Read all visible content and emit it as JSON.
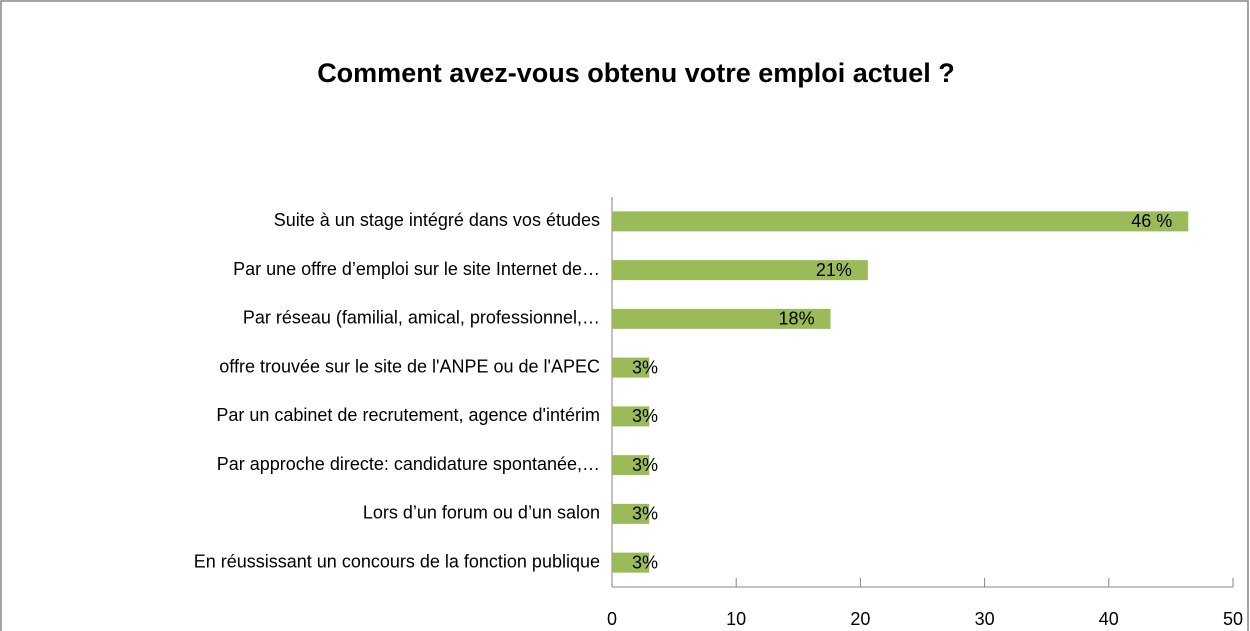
{
  "chart_data": {
    "type": "hbar",
    "title": "Comment avez-vous obtenu votre emploi actuel ?",
    "categories": [
      "Suite à un stage intégré dans vos études",
      "Par une offre d’emploi sur le site Internet de…",
      "Par réseau (familial, amical, professionnel,…",
      "offre trouvée sur le site de l'ANPE ou de l'APEC",
      "Par un cabinet de recrutement, agence d'intérim",
      "Par approche directe: candidature spontanée,…",
      "Lors d’un forum ou d’un salon",
      "En réussissant un concours de la fonction publique"
    ],
    "values": [
      46.4,
      20.6,
      17.6,
      3,
      3,
      3,
      3,
      3
    ],
    "value_labels": [
      "46 %",
      "21%",
      "18%",
      "3%",
      "3%",
      "3%",
      "3%",
      "3%"
    ],
    "color": "#9bbb59",
    "xlim": [
      0,
      50
    ],
    "xticks": [
      0,
      10,
      20,
      30,
      40,
      50
    ]
  }
}
